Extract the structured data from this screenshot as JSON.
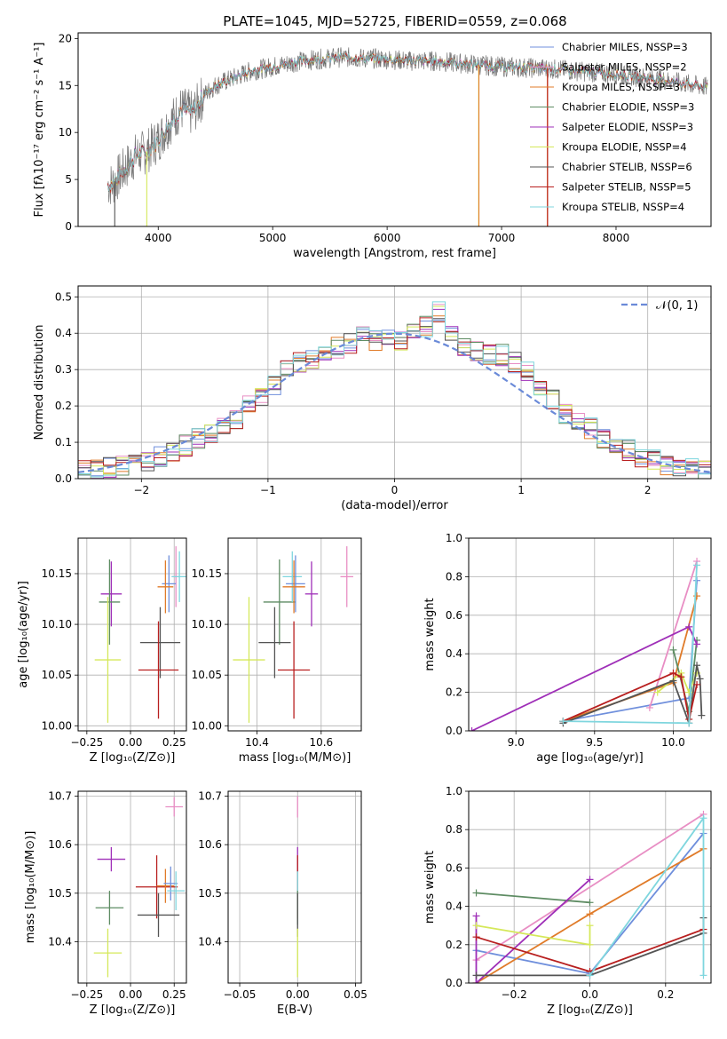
{
  "title": "PLATE=1045, MJD=52725, FIBERID=0559, z=0.068",
  "colors": {
    "Chabrier MILES": "#6f8fdc",
    "Salpeter MILES": "#e88ec4",
    "Kroupa MILES": "#e07b29",
    "Chabrier ELODIE": "#5e8c63",
    "Salpeter ELODIE": "#9f2fb8",
    "Kroupa ELODIE": "#d5e85a",
    "Chabrier STELIB": "#545454",
    "Salpeter STELIB": "#b81f1f",
    "Kroupa STELIB": "#7fd6de"
  },
  "panels": {
    "spectrum": {
      "xlabel": "wavelength [Angstrom, rest frame]",
      "ylabel": "Flux [fλ10⁻¹⁷ erg cm⁻² s⁻¹ A⁻¹]",
      "xticks": [
        "4000",
        "5000",
        "6000",
        "7000",
        "8000"
      ],
      "yticks": [
        "0",
        "5",
        "10",
        "15",
        "20"
      ],
      "legend": [
        "Chabrier MILES, N_SSP=3",
        "Salpeter MILES, N_SSP=2",
        "Kroupa MILES, N_SSP=3",
        "Chabrier ELODIE, N_SSP=3",
        "Salpeter ELODIE, N_SSP=3",
        "Kroupa ELODIE, N_SSP=4",
        "Chabrier STELIB, N_SSP=6",
        "Salpeter STELIB, N_SSP=5",
        "Kroupa STELIB, N_SSP=4"
      ]
    },
    "residuals": {
      "xlabel": "(data-model)/error",
      "ylabel": "Normed distribution",
      "xticks": [
        "−2",
        "−1",
        "0",
        "1",
        "2"
      ],
      "yticks": [
        "0.0",
        "0.1",
        "0.2",
        "0.3",
        "0.4",
        "0.5"
      ],
      "legend": "𝒩(0, 1)"
    },
    "age_z": {
      "xlabel": "Z [log₁₀(Z/Z⊙)]",
      "ylabel": "age  [log₁₀(age/yr)]",
      "xticks": [
        "−0.25",
        "0.00",
        "0.25"
      ],
      "yticks": [
        "10.00",
        "10.05",
        "10.10",
        "10.15"
      ]
    },
    "age_mass": {
      "xlabel": "mass [log₁₀(M/M⊙)]",
      "xticks": [
        "10.4",
        "10.6"
      ],
      "yticks": [
        "10.00",
        "10.05",
        "10.10",
        "10.15"
      ]
    },
    "weight_age": {
      "xlabel": "age  [log₁₀(age/yr)]",
      "ylabel": "mass weight",
      "xticks": [
        "9.0",
        "9.5",
        "10.0"
      ],
      "yticks": [
        "0.0",
        "0.2",
        "0.4",
        "0.6",
        "0.8",
        "1.0"
      ]
    },
    "mass_z": {
      "xlabel": "Z [log₁₀(Z/Z⊙)]",
      "ylabel": "mass [log₁₀(M/M⊙)]",
      "xticks": [
        "−0.25",
        "0.00",
        "0.25"
      ],
      "yticks": [
        "10.4",
        "10.5",
        "10.6",
        "10.7"
      ]
    },
    "mass_ebv": {
      "xlabel": "E(B-V)",
      "xticks": [
        "−0.05",
        "0.00",
        "0.05"
      ],
      "yticks": [
        "10.4",
        "10.5",
        "10.6",
        "10.7"
      ]
    },
    "weight_z": {
      "xlabel": "Z [log₁₀(Z/Z⊙)]",
      "ylabel": "mass weight",
      "xticks": [
        "−0.2",
        "0.0",
        "0.2"
      ],
      "yticks": [
        "0.0",
        "0.2",
        "0.4",
        "0.6",
        "0.8",
        "1.0"
      ]
    }
  },
  "chart_data": [
    {
      "id": "spectrum",
      "type": "line",
      "title": "PLATE=1045, MJD=52725, FIBERID=0559, z=0.068",
      "xlabel": "wavelength [Angstrom, rest frame]",
      "ylabel": "Flux [fλ10⁻¹⁷ erg cm⁻² s⁻¹ A⁻¹]",
      "xlim": [
        3300,
        8830
      ],
      "ylim": [
        0,
        20.6
      ],
      "legend_position": "right",
      "continuum": {
        "x": [
          3600,
          3700,
          3800,
          3900,
          4000,
          4100,
          4200,
          4300,
          4400,
          4500,
          4600,
          4800,
          5000,
          5200,
          5400,
          5600,
          5800,
          6000,
          6200,
          6400,
          6600,
          6800,
          7000,
          7200,
          7400,
          7600,
          7800,
          8000,
          8200,
          8400,
          8600,
          8800
        ],
        "y": [
          4.5,
          6.0,
          7.5,
          8.0,
          9.2,
          11.0,
          12.5,
          12.0,
          14.0,
          15.0,
          15.5,
          16.5,
          17.0,
          17.5,
          17.8,
          18.0,
          17.9,
          17.8,
          17.6,
          17.6,
          17.4,
          17.2,
          17.0,
          16.9,
          16.8,
          16.6,
          16.4,
          16.2,
          15.9,
          15.6,
          15.2,
          14.8
        ]
      },
      "series": [
        {
          "name": "Chabrier MILES, N_SSP=3",
          "color": "#6f8fdc"
        },
        {
          "name": "Salpeter MILES, N_SSP=2",
          "color": "#e88ec4"
        },
        {
          "name": "Kroupa MILES, N_SSP=3",
          "color": "#e07b29"
        },
        {
          "name": "Chabrier ELODIE, N_SSP=3",
          "color": "#5e8c63"
        },
        {
          "name": "Salpeter ELODIE, N_SSP=3",
          "color": "#9f2fb8"
        },
        {
          "name": "Kroupa ELODIE, N_SSP=4",
          "color": "#d5e85a"
        },
        {
          "name": "Chabrier STELIB, N_SSP=6",
          "color": "#545454"
        },
        {
          "name": "Salpeter STELIB, N_SSP=5",
          "color": "#b81f1f"
        },
        {
          "name": "Kroupa STELIB, N_SSP=4",
          "color": "#7fd6de"
        }
      ]
    },
    {
      "id": "residuals",
      "type": "line",
      "xlabel": "(data-model)/error",
      "ylabel": "Normed distribution",
      "xlim": [
        -2.5,
        2.5
      ],
      "ylim": [
        0,
        0.53
      ],
      "grid": true,
      "bin_edges": [
        -2.5,
        -2.4,
        -2.3,
        -2.2,
        -2.1,
        -2.0,
        -1.9,
        -1.8,
        -1.7,
        -1.6,
        -1.5,
        -1.4,
        -1.3,
        -1.2,
        -1.1,
        -1.0,
        -0.9,
        -0.8,
        -0.7,
        -0.6,
        -0.5,
        -0.4,
        -0.3,
        -0.2,
        -0.1,
        0.0,
        0.1,
        0.2,
        0.3,
        0.4,
        0.5,
        0.6,
        0.7,
        0.8,
        0.9,
        1.0,
        1.1,
        1.2,
        1.3,
        1.4,
        1.5,
        1.6,
        1.7,
        1.8,
        1.9,
        2.0,
        2.1,
        2.2,
        2.3,
        2.4,
        2.5
      ],
      "histogram_envelope": [
        0.02,
        0.025,
        0.03,
        0.035,
        0.04,
        0.045,
        0.06,
        0.07,
        0.09,
        0.11,
        0.12,
        0.14,
        0.16,
        0.2,
        0.23,
        0.26,
        0.3,
        0.32,
        0.33,
        0.35,
        0.36,
        0.37,
        0.39,
        0.38,
        0.39,
        0.38,
        0.4,
        0.42,
        0.46,
        0.4,
        0.36,
        0.35,
        0.34,
        0.34,
        0.32,
        0.3,
        0.26,
        0.22,
        0.18,
        0.16,
        0.14,
        0.11,
        0.1,
        0.08,
        0.06,
        0.05,
        0.04,
        0.035,
        0.03,
        0.025
      ],
      "gaussian": {
        "name": "𝒩(0, 1)",
        "mean": 0,
        "sigma": 1,
        "style": "dashed",
        "color": "#6a8ad8"
      }
    },
    {
      "id": "age_z",
      "type": "scatter",
      "xlabel": "Z [log₁₀(Z/Z⊙)]",
      "ylabel": "age  [log₁₀(age/yr)]",
      "xlim": [
        -0.3,
        0.32
      ],
      "ylim": [
        9.995,
        10.185
      ],
      "points": [
        {
          "model": "Salpeter ELODIE",
          "x": -0.11,
          "y": 10.13,
          "xerr": 0.06,
          "yerr": 0.032
        },
        {
          "model": "Chabrier ELODIE",
          "x": -0.12,
          "y": 10.122,
          "xerr": 0.06,
          "yerr": 0.042
        },
        {
          "model": "Kroupa ELODIE",
          "x": -0.13,
          "y": 10.065,
          "xerr": 0.075,
          "yerr": 0.062
        },
        {
          "model": "Salpeter MILES",
          "x": 0.26,
          "y": 10.147,
          "xerr": 0.02,
          "yerr": 0.03
        },
        {
          "model": "Kroupa STELIB",
          "x": 0.28,
          "y": 10.147,
          "xerr": 0.045,
          "yerr": 0.025
        },
        {
          "model": "Chabrier MILES",
          "x": 0.22,
          "y": 10.14,
          "xerr": 0.04,
          "yerr": 0.028
        },
        {
          "model": "Kroupa MILES",
          "x": 0.2,
          "y": 10.137,
          "xerr": 0.045,
          "yerr": 0.026
        },
        {
          "model": "Chabrier STELIB",
          "x": 0.17,
          "y": 10.082,
          "xerr": 0.115,
          "yerr": 0.035
        },
        {
          "model": "Salpeter STELIB",
          "x": 0.16,
          "y": 10.055,
          "xerr": 0.115,
          "yerr": 0.048
        }
      ]
    },
    {
      "id": "age_mass",
      "type": "scatter",
      "xlabel": "mass [log₁₀(M/M⊙)]",
      "xlim": [
        10.31,
        10.725
      ],
      "ylim": [
        9.995,
        10.185
      ],
      "points": [
        {
          "model": "Salpeter ELODIE",
          "x": 10.57,
          "y": 10.13,
          "xerr": 0.02,
          "yerr": 0.032
        },
        {
          "model": "Chabrier ELODIE",
          "x": 10.47,
          "y": 10.122,
          "xerr": 0.05,
          "yerr": 0.042
        },
        {
          "model": "Kroupa ELODIE",
          "x": 10.375,
          "y": 10.065,
          "xerr": 0.05,
          "yerr": 0.062
        },
        {
          "model": "Salpeter MILES",
          "x": 10.68,
          "y": 10.147,
          "xerr": 0.02,
          "yerr": 0.03
        },
        {
          "model": "Kroupa STELIB",
          "x": 10.51,
          "y": 10.147,
          "xerr": 0.03,
          "yerr": 0.025
        },
        {
          "model": "Chabrier MILES",
          "x": 10.52,
          "y": 10.14,
          "xerr": 0.03,
          "yerr": 0.028
        },
        {
          "model": "Kroupa MILES",
          "x": 10.515,
          "y": 10.137,
          "xerr": 0.035,
          "yerr": 0.026
        },
        {
          "model": "Chabrier STELIB",
          "x": 10.455,
          "y": 10.082,
          "xerr": 0.05,
          "yerr": 0.035
        },
        {
          "model": "Salpeter STELIB",
          "x": 10.515,
          "y": 10.055,
          "xerr": 0.05,
          "yerr": 0.048
        }
      ]
    },
    {
      "id": "weight_age",
      "type": "line",
      "xlabel": "age  [log₁₀(age/yr)]",
      "ylabel": "mass weight",
      "xlim": [
        8.7,
        10.24
      ],
      "ylim": [
        0,
        1.0
      ],
      "grid": true,
      "series": [
        {
          "name": "Chabrier MILES",
          "x": [
            9.3,
            10.1,
            10.15
          ],
          "y": [
            0.05,
            0.17,
            0.78
          ]
        },
        {
          "name": "Salpeter MILES",
          "x": [
            9.85,
            10.15
          ],
          "y": [
            0.12,
            0.88
          ]
        },
        {
          "name": "Kroupa MILES",
          "x": [
            9.3,
            10.0,
            10.15
          ],
          "y": [
            0.05,
            0.25,
            0.7
          ]
        },
        {
          "name": "Chabrier ELODIE",
          "x": [
            10.0,
            10.1,
            10.15
          ],
          "y": [
            0.42,
            0.1,
            0.47
          ]
        },
        {
          "name": "Salpeter ELODIE",
          "x": [
            8.72,
            10.1,
            10.15
          ],
          "y": [
            0.0,
            0.54,
            0.45
          ]
        },
        {
          "name": "Kroupa ELODIE",
          "x": [
            9.9,
            10.05,
            10.1,
            10.15
          ],
          "y": [
            0.2,
            0.3,
            0.2,
            0.3
          ]
        },
        {
          "name": "Chabrier STELIB",
          "x": [
            9.3,
            10.0,
            10.1,
            10.15,
            10.17,
            10.18
          ],
          "y": [
            0.04,
            0.26,
            0.04,
            0.34,
            0.27,
            0.08
          ]
        },
        {
          "name": "Salpeter STELIB",
          "x": [
            9.3,
            10.0,
            10.05,
            10.1,
            10.15
          ],
          "y": [
            0.05,
            0.3,
            0.28,
            0.06,
            0.24
          ]
        },
        {
          "name": "Kroupa STELIB",
          "x": [
            9.3,
            10.1,
            10.15
          ],
          "y": [
            0.05,
            0.04,
            0.86
          ]
        }
      ]
    },
    {
      "id": "mass_z",
      "type": "scatter",
      "xlabel": "Z [log₁₀(Z/Z⊙)]",
      "ylabel": "mass [log₁₀(M/M⊙)]",
      "xlim": [
        -0.3,
        0.32
      ],
      "ylim": [
        10.315,
        10.71
      ],
      "points": [
        {
          "model": "Salpeter MILES",
          "x": 0.25,
          "y": 10.678,
          "xerr": 0.05,
          "yerr": 0.02
        },
        {
          "model": "Salpeter ELODIE",
          "x": -0.11,
          "y": 10.57,
          "xerr": 0.08,
          "yerr": 0.025
        },
        {
          "model": "Chabrier ELODIE",
          "x": -0.12,
          "y": 10.47,
          "xerr": 0.08,
          "yerr": 0.035
        },
        {
          "model": "Kroupa ELODIE",
          "x": -0.13,
          "y": 10.377,
          "xerr": 0.08,
          "yerr": 0.05
        },
        {
          "model": "Salpeter STELIB",
          "x": 0.15,
          "y": 10.513,
          "xerr": 0.12,
          "yerr": 0.065
        },
        {
          "model": "Chabrier STELIB",
          "x": 0.16,
          "y": 10.455,
          "xerr": 0.12,
          "yerr": 0.045
        },
        {
          "model": "Kroupa MILES",
          "x": 0.2,
          "y": 10.515,
          "xerr": 0.05,
          "yerr": 0.035
        },
        {
          "model": "Chabrier MILES",
          "x": 0.23,
          "y": 10.52,
          "xerr": 0.04,
          "yerr": 0.035
        },
        {
          "model": "Kroupa STELIB",
          "x": 0.26,
          "y": 10.505,
          "xerr": 0.05,
          "yerr": 0.04
        }
      ]
    },
    {
      "id": "mass_ebv",
      "type": "scatter",
      "xlabel": "E(B-V)",
      "xlim": [
        -0.06,
        0.055
      ],
      "ylim": [
        10.315,
        10.71
      ],
      "points": [
        {
          "model": "Salpeter MILES",
          "x": 0,
          "y": 10.678,
          "yerr": 0.022
        },
        {
          "model": "Salpeter ELODIE",
          "x": 0,
          "y": 10.57,
          "yerr": 0.025
        },
        {
          "model": "Salpeter STELIB",
          "x": 0,
          "y": 10.513,
          "yerr": 0.065
        },
        {
          "model": "Kroupa STELIB",
          "x": 0,
          "y": 10.505,
          "yerr": 0.04
        },
        {
          "model": "Chabrier ELODIE",
          "x": 0,
          "y": 10.47,
          "yerr": 0.035
        },
        {
          "model": "Chabrier STELIB",
          "x": 0,
          "y": 10.455,
          "yerr": 0.045
        },
        {
          "model": "Kroupa ELODIE",
          "x": 0,
          "y": 10.377,
          "yerr": 0.05
        }
      ]
    },
    {
      "id": "weight_z",
      "type": "line",
      "xlabel": "Z [log₁₀(Z/Z⊙)]",
      "ylabel": "mass weight",
      "xlim": [
        -0.32,
        0.32
      ],
      "ylim": [
        0,
        1.0
      ],
      "grid": true,
      "series": [
        {
          "name": "Chabrier MILES",
          "x": [
            -0.3,
            0.0,
            0.3
          ],
          "y": [
            0.17,
            0.05,
            0.78
          ]
        },
        {
          "name": "Salpeter MILES",
          "x": [
            -0.3,
            0.3
          ],
          "y": [
            0.12,
            0.88
          ]
        },
        {
          "name": "Kroupa MILES",
          "x": [
            -0.3,
            0.0,
            0.3
          ],
          "y": [
            0.0,
            0.36,
            0.7
          ]
        },
        {
          "name": "Chabrier ELODIE",
          "x": [
            -0.3,
            0.0
          ],
          "y": [
            0.47,
            0.42
          ]
        },
        {
          "name": "Salpeter ELODIE",
          "x": [
            -0.3,
            -0.3,
            0.0
          ],
          "y": [
            0.35,
            0.0,
            0.54
          ]
        },
        {
          "name": "Kroupa ELODIE",
          "x": [
            -0.3,
            0.0,
            0.0
          ],
          "y": [
            0.3,
            0.2,
            0.3
          ]
        },
        {
          "name": "Chabrier STELIB",
          "x": [
            -0.3,
            0.0,
            0.3,
            0.3
          ],
          "y": [
            0.04,
            0.04,
            0.26,
            0.34
          ]
        },
        {
          "name": "Salpeter STELIB",
          "x": [
            -0.3,
            0.0,
            0.3
          ],
          "y": [
            0.24,
            0.06,
            0.28
          ]
        },
        {
          "name": "Kroupa STELIB",
          "x": [
            0.0,
            0.3,
            0.3
          ],
          "y": [
            0.04,
            0.86,
            0.04
          ]
        }
      ]
    }
  ]
}
